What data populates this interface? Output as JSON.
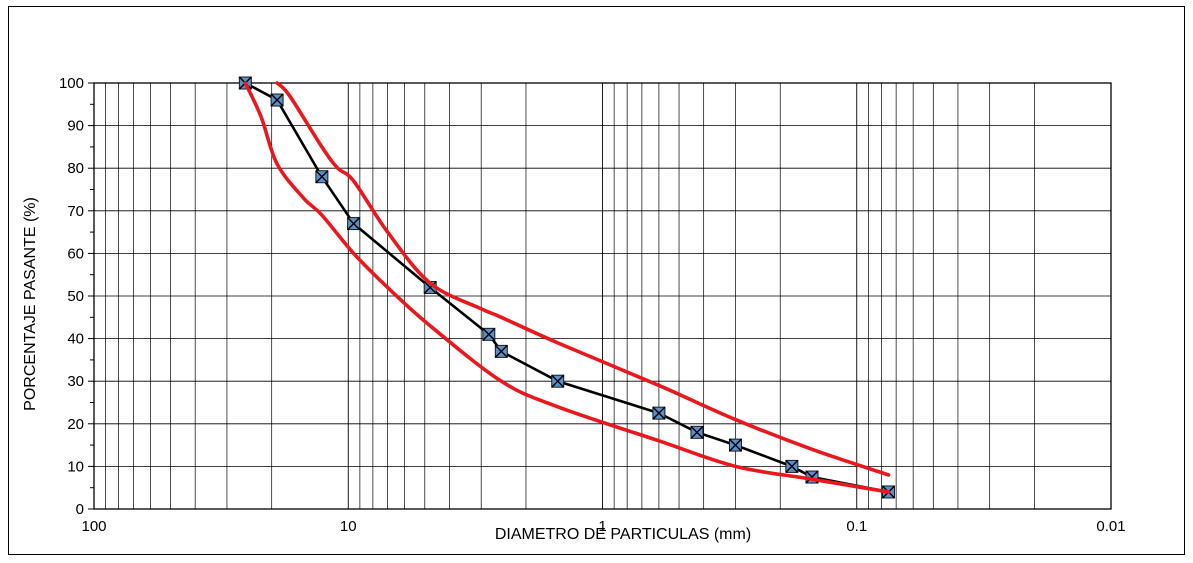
{
  "chart_data": {
    "type": "line",
    "xscale": "log",
    "x_reversed": true,
    "xlim": [
      100,
      0.01
    ],
    "ylim": [
      0,
      100
    ],
    "xlabel": "DIAMETRO DE PARTICULAS (mm)",
    "ylabel": "PORCENTAJE  PASANTE (%)",
    "x_ticks": [
      {
        "value": 100,
        "label": "100"
      },
      {
        "value": 10,
        "label": "10"
      },
      {
        "value": 1,
        "label": "1"
      },
      {
        "value": 0.1,
        "label": "0.1"
      },
      {
        "value": 0.01,
        "label": "0.01"
      }
    ],
    "y_ticks": [
      0,
      10,
      20,
      30,
      40,
      50,
      60,
      70,
      80,
      90,
      100
    ],
    "grid": true,
    "series": [
      {
        "name": "",
        "color": "#000000",
        "marker": "boxed-x",
        "marker_color": "#5b8fc9",
        "x": [
          25.4,
          19.05,
          12.7,
          9.525,
          4.76,
          2.8,
          2.5,
          1.5,
          0.6,
          0.425,
          0.3,
          0.18,
          0.15,
          0.075
        ],
        "y": [
          100,
          96,
          78,
          67,
          52,
          41,
          37,
          30,
          22.5,
          18,
          15,
          10,
          7.5,
          4
        ]
      },
      {
        "name": "",
        "color": "#e8191e",
        "marker": "none",
        "x": [
          19.05,
          17,
          12.7,
          11,
          9.525,
          7,
          4.76,
          3,
          2.5,
          1.5,
          0.6,
          0.3,
          0.15,
          0.075
        ],
        "y": [
          100,
          97,
          85,
          80,
          77,
          65,
          53,
          47,
          45,
          39,
          29,
          21,
          14,
          8
        ]
      },
      {
        "name": "",
        "color": "#e8191e",
        "marker": "none",
        "x": [
          25.4,
          22,
          19.05,
          15,
          12.7,
          9.525,
          7,
          4.76,
          2.5,
          1.5,
          0.6,
          0.3,
          0.15,
          0.075
        ],
        "y": [
          100,
          92,
          81,
          73,
          69,
          60,
          52,
          43,
          30,
          24,
          16,
          10,
          7,
          4
        ]
      }
    ]
  }
}
